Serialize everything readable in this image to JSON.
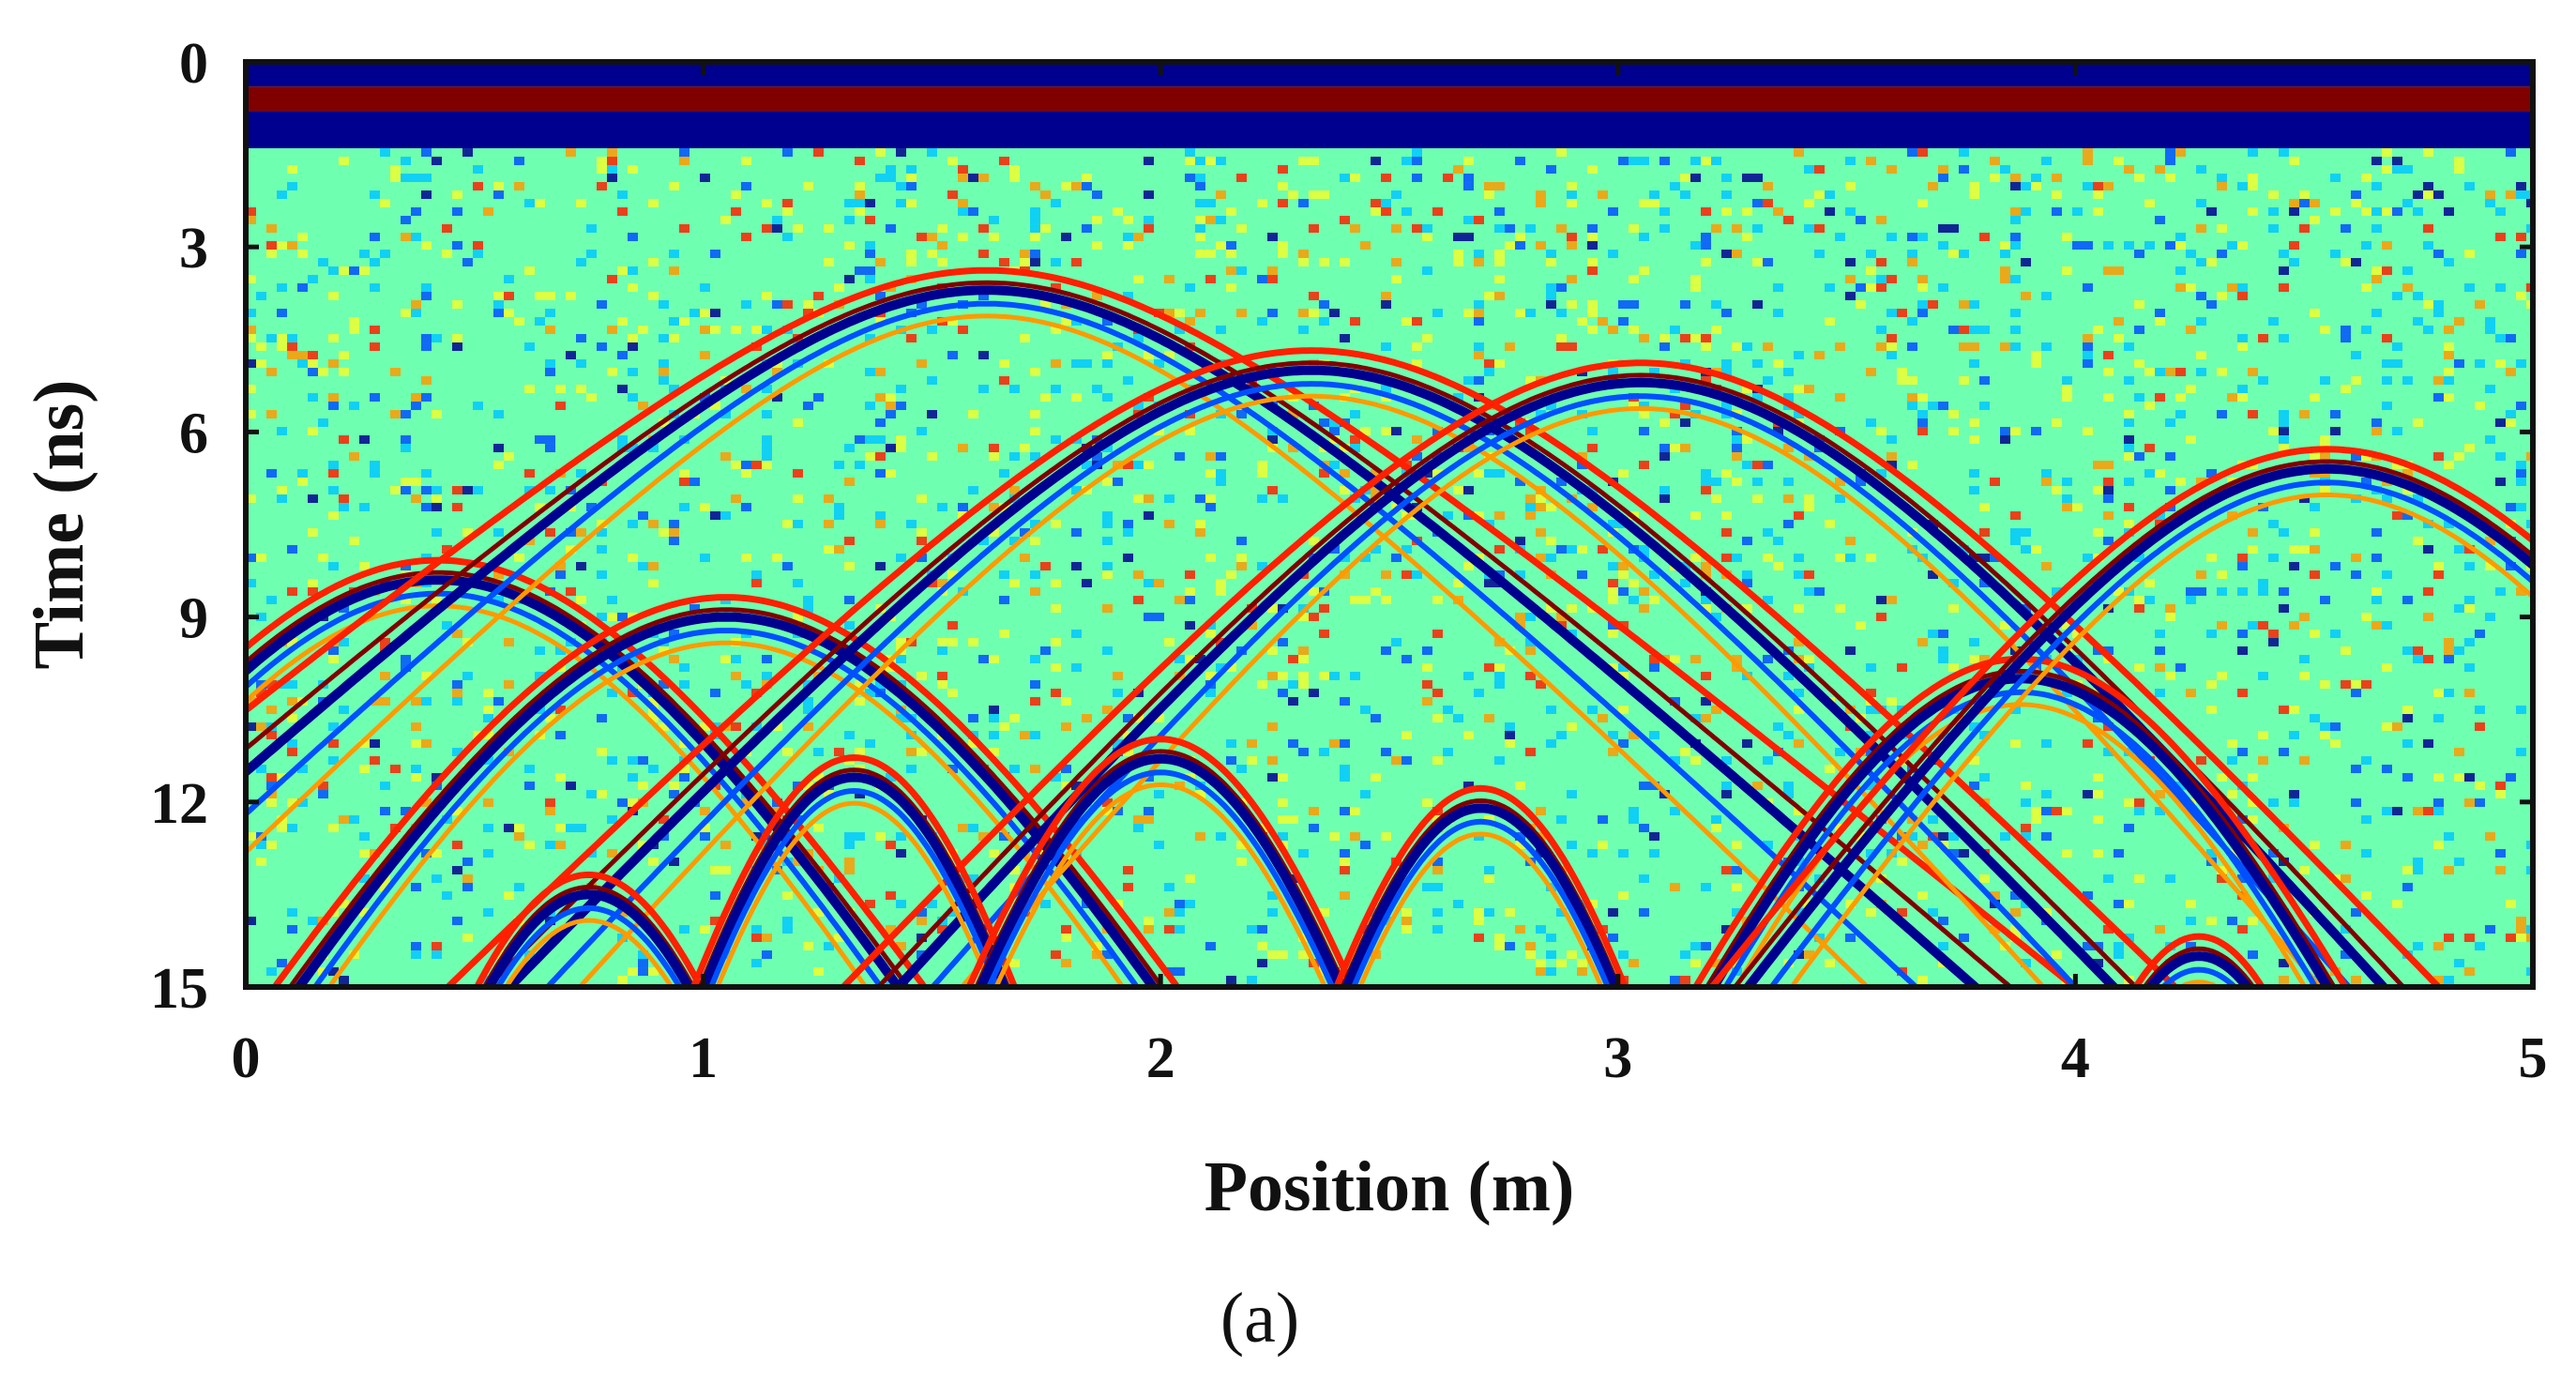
{
  "chart_data": {
    "type": "heatmap",
    "title": "",
    "xlabel": "Position (m)",
    "ylabel": "Time (ns)",
    "panel_label": "(a)",
    "xlim": [
      0,
      5
    ],
    "ylim": [
      0,
      15
    ],
    "y_inverted": true,
    "x_ticks": [
      "0",
      "1",
      "2",
      "3",
      "4",
      "5"
    ],
    "y_ticks": [
      "0",
      "3",
      "6",
      "9",
      "12",
      "15"
    ],
    "colormap": [
      "#00008f",
      "#0050ff",
      "#00c8ff",
      "#7bffa0",
      "#f0ff30",
      "#ff9a00",
      "#ff2000",
      "#800000"
    ],
    "background_color": "#6fffb0",
    "direct_wave_bands": [
      {
        "t_start": 0.0,
        "t_end": 0.4,
        "color": "#00008f"
      },
      {
        "t_start": 0.4,
        "t_end": 0.8,
        "color": "#800000"
      },
      {
        "t_start": 0.8,
        "t_end": 1.4,
        "color": "#00008f"
      }
    ],
    "hyperbolas": [
      {
        "apex_x": 0.42,
        "apex_t": 8.4,
        "spread": 0.68
      },
      {
        "apex_x": 1.05,
        "apex_t": 9.0,
        "spread": 0.7
      },
      {
        "apex_x": 1.62,
        "apex_t": 3.7,
        "spread": 0.55
      },
      {
        "apex_x": 2.33,
        "apex_t": 5.0,
        "spread": 0.62
      },
      {
        "apex_x": 3.05,
        "apex_t": 5.2,
        "spread": 0.6
      },
      {
        "apex_x": 3.88,
        "apex_t": 10.0,
        "spread": 0.6
      },
      {
        "apex_x": 4.55,
        "apex_t": 6.6,
        "spread": 0.62
      },
      {
        "apex_x": 0.75,
        "apex_t": 13.5,
        "spread": 0.45
      },
      {
        "apex_x": 1.33,
        "apex_t": 11.6,
        "spread": 0.4
      },
      {
        "apex_x": 2.0,
        "apex_t": 11.3,
        "spread": 0.45
      },
      {
        "apex_x": 2.7,
        "apex_t": 12.1,
        "spread": 0.4
      },
      {
        "apex_x": 4.27,
        "apex_t": 14.5,
        "spread": 0.4
      }
    ]
  }
}
